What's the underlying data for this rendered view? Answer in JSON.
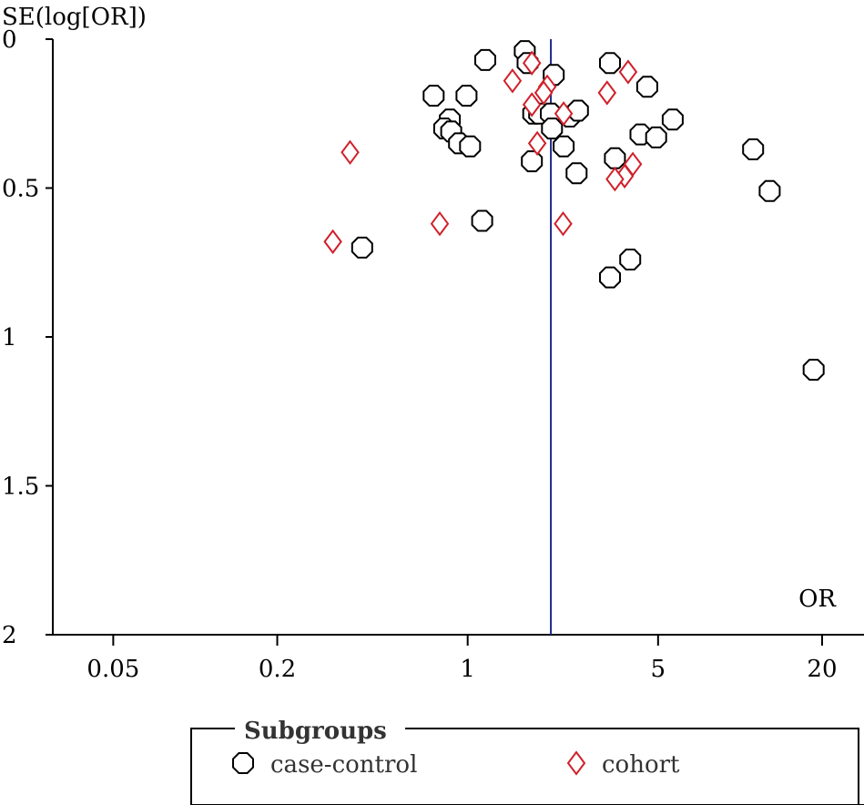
{
  "chart_data": {
    "type": "scatter",
    "title": "",
    "ylabel": "SE(log[OR])",
    "xlabel": "OR",
    "x_scale": "log",
    "y_inverted": true,
    "xlim": [
      0.03,
      28.5
    ],
    "ylim": [
      0,
      2
    ],
    "x_ticks": [
      {
        "value": 0.05,
        "label": "0.05"
      },
      {
        "value": 0.2,
        "label": "0.2"
      },
      {
        "value": 1,
        "label": "1"
      },
      {
        "value": 5,
        "label": "5"
      },
      {
        "value": 20,
        "label": "20"
      }
    ],
    "y_ticks": [
      {
        "value": 0,
        "label": "0"
      },
      {
        "value": 0.5,
        "label": "0.5"
      },
      {
        "value": 1,
        "label": "1"
      },
      {
        "value": 1.5,
        "label": "1.5"
      },
      {
        "value": 2,
        "label": "2"
      }
    ],
    "reference_line": {
      "x": 2.02,
      "color": "#1f2a8a"
    },
    "grid": false,
    "legend": {
      "title": "Subgroups",
      "placement": "bottom",
      "entries": [
        "case-control",
        "cohort"
      ]
    },
    "series": [
      {
        "name": "case-control",
        "marker": "octagon",
        "color": "#000000",
        "points": [
          {
            "x": 1.16,
            "y": 0.07
          },
          {
            "x": 1.62,
            "y": 0.04
          },
          {
            "x": 1.66,
            "y": 0.08
          },
          {
            "x": 2.07,
            "y": 0.12
          },
          {
            "x": 3.33,
            "y": 0.08
          },
          {
            "x": 4.56,
            "y": 0.16
          },
          {
            "x": 0.75,
            "y": 0.19
          },
          {
            "x": 0.99,
            "y": 0.19
          },
          {
            "x": 1.74,
            "y": 0.25
          },
          {
            "x": 1.83,
            "y": 0.25
          },
          {
            "x": 2.02,
            "y": 0.25
          },
          {
            "x": 2.37,
            "y": 0.26
          },
          {
            "x": 2.54,
            "y": 0.24
          },
          {
            "x": 0.86,
            "y": 0.27
          },
          {
            "x": 5.66,
            "y": 0.27
          },
          {
            "x": 0.82,
            "y": 0.3
          },
          {
            "x": 2.04,
            "y": 0.3
          },
          {
            "x": 0.87,
            "y": 0.31
          },
          {
            "x": 4.31,
            "y": 0.32
          },
          {
            "x": 4.92,
            "y": 0.33
          },
          {
            "x": 0.93,
            "y": 0.35
          },
          {
            "x": 1.02,
            "y": 0.36
          },
          {
            "x": 2.25,
            "y": 0.36
          },
          {
            "x": 1.72,
            "y": 0.41
          },
          {
            "x": 3.47,
            "y": 0.4
          },
          {
            "x": 11.16,
            "y": 0.37
          },
          {
            "x": 2.51,
            "y": 0.45
          },
          {
            "x": 12.84,
            "y": 0.51
          },
          {
            "x": 1.13,
            "y": 0.61
          },
          {
            "x": 0.41,
            "y": 0.7
          },
          {
            "x": 3.95,
            "y": 0.74
          },
          {
            "x": 3.33,
            "y": 0.8
          },
          {
            "x": 18.62,
            "y": 1.11
          }
        ]
      },
      {
        "name": "cohort",
        "marker": "diamond",
        "color": "#d0202a",
        "points": [
          {
            "x": 1.72,
            "y": 0.08
          },
          {
            "x": 3.88,
            "y": 0.11
          },
          {
            "x": 1.46,
            "y": 0.14
          },
          {
            "x": 1.96,
            "y": 0.16
          },
          {
            "x": 1.9,
            "y": 0.18
          },
          {
            "x": 3.25,
            "y": 0.18
          },
          {
            "x": 1.72,
            "y": 0.22
          },
          {
            "x": 2.25,
            "y": 0.25
          },
          {
            "x": 1.8,
            "y": 0.35
          },
          {
            "x": 0.37,
            "y": 0.38
          },
          {
            "x": 4.04,
            "y": 0.42
          },
          {
            "x": 3.77,
            "y": 0.46
          },
          {
            "x": 3.47,
            "y": 0.47
          },
          {
            "x": 0.79,
            "y": 0.62
          },
          {
            "x": 2.24,
            "y": 0.62
          },
          {
            "x": 0.32,
            "y": 0.68
          }
        ]
      }
    ]
  }
}
